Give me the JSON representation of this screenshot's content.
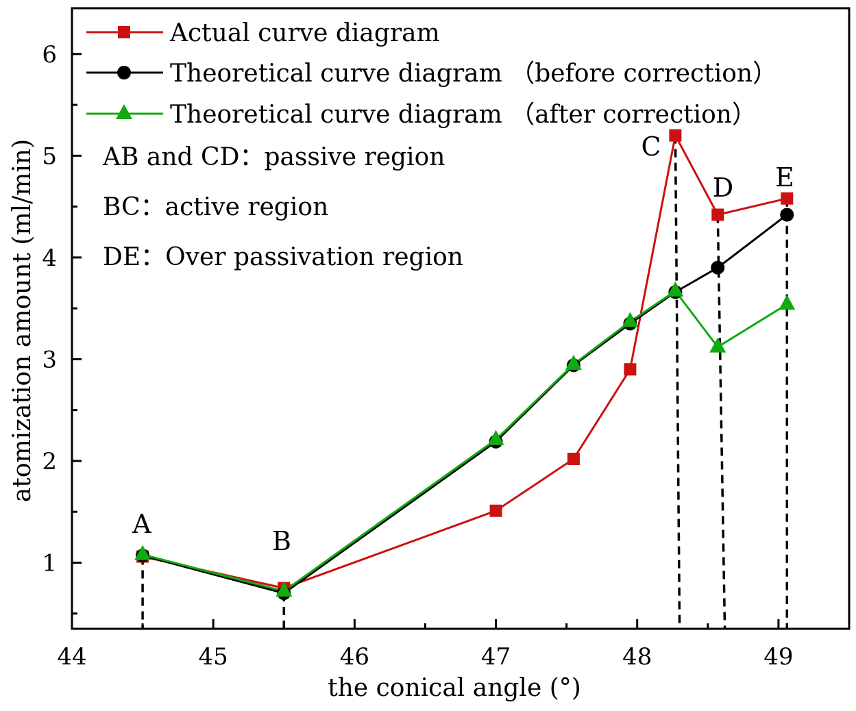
{
  "chart_data": {
    "type": "line",
    "xlabel": "the conical angle (°)",
    "ylabel": "atomization amount (ml/min)",
    "xlim": [
      44,
      49.5
    ],
    "ylim": [
      0.35,
      6.45
    ],
    "xticks": [
      44,
      45,
      46,
      47,
      48,
      49
    ],
    "yticks": [
      1,
      2,
      3,
      4,
      5,
      6
    ],
    "x_tick_labels": [
      "44",
      "45",
      "46",
      "47",
      "48",
      "49"
    ],
    "y_tick_labels": [
      "1",
      "2",
      "3",
      "4",
      "5",
      "6"
    ],
    "legend_position": "top-left",
    "series": [
      {
        "name": "Actual curve diagram",
        "color": "#cc1111",
        "marker": "square",
        "x": [
          44.5,
          45.5,
          47.0,
          47.55,
          47.95,
          48.27,
          48.57,
          49.06
        ],
        "y": [
          1.06,
          0.75,
          1.51,
          2.02,
          2.9,
          5.2,
          4.42,
          4.58
        ]
      },
      {
        "name": "Theoretical curve diagram （before correction）",
        "color": "#000000",
        "marker": "circle",
        "x": [
          44.5,
          45.5,
          47.0,
          47.55,
          47.95,
          48.27,
          48.57,
          49.06
        ],
        "y": [
          1.07,
          0.7,
          2.19,
          2.94,
          3.35,
          3.66,
          3.9,
          4.42
        ]
      },
      {
        "name": "Theoretical curve diagram （after correction）",
        "color": "#11aa11",
        "marker": "triangle",
        "x": [
          44.5,
          45.5,
          47.0,
          47.55,
          47.95,
          48.27,
          48.57,
          49.06
        ],
        "y": [
          1.08,
          0.72,
          2.21,
          2.95,
          3.37,
          3.67,
          3.12,
          3.54
        ]
      }
    ],
    "point_labels": [
      {
        "text": "A",
        "x": 44.5,
        "y": 1.08
      },
      {
        "text": "B",
        "x": 45.5,
        "y": 0.75
      },
      {
        "text": "C",
        "x": 48.27,
        "y": 5.2
      },
      {
        "text": "D",
        "x": 48.57,
        "y": 4.42
      },
      {
        "text": "E",
        "x": 49.06,
        "y": 4.58
      }
    ],
    "dashed_drop_lines": [
      {
        "from_x": 44.5,
        "from_y": 1.06,
        "to_x": 44.5
      },
      {
        "from_x": 45.5,
        "from_y": 0.7,
        "to_x": 45.5
      },
      {
        "from_x": 48.27,
        "from_y": 5.2,
        "to_x": 48.3
      },
      {
        "from_x": 48.57,
        "from_y": 4.42,
        "to_x": 48.62
      },
      {
        "from_x": 49.06,
        "from_y": 4.58,
        "to_x": 49.06
      }
    ],
    "annotations": [
      "AB and CD：passive region",
      "BC：active region",
      "DE：Over passivation region"
    ]
  }
}
